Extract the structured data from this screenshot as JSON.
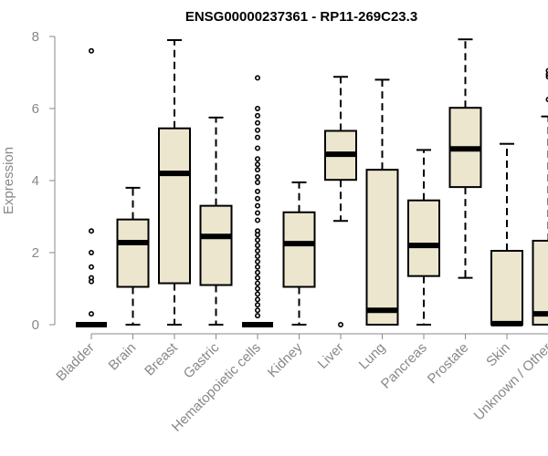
{
  "chart_data": {
    "type": "boxplot",
    "title": "ENSG00000237361 - RP11-269C23.3",
    "xlabel": "",
    "ylabel": "Expression",
    "ylim": [
      0,
      8
    ],
    "yticks": [
      0,
      2,
      4,
      6,
      8
    ],
    "box_fill": "#ede6cf",
    "categories": [
      "Bladder",
      "Brain",
      "Breast",
      "Gastric",
      "Hematopoietic cells",
      "Kidney",
      "Liver",
      "Lung",
      "Pancreas",
      "Prostate",
      "Skin",
      "Unknown / Other"
    ],
    "boxes": [
      {
        "name": "Bladder",
        "q1": 0,
        "median": 0,
        "q3": 0,
        "whisker_low": 0,
        "whisker_high": 0,
        "outliers": [
          7.6,
          2.6,
          2.0,
          1.6,
          1.3,
          1.2,
          0.3
        ]
      },
      {
        "name": "Brain",
        "q1": 1.05,
        "median": 2.28,
        "q3": 2.92,
        "whisker_low": 0,
        "whisker_high": 3.8,
        "outliers": []
      },
      {
        "name": "Breast",
        "q1": 1.15,
        "median": 4.2,
        "q3": 5.45,
        "whisker_low": 0,
        "whisker_high": 7.9,
        "outliers": []
      },
      {
        "name": "Gastric",
        "q1": 1.1,
        "median": 2.45,
        "q3": 3.3,
        "whisker_low": 0,
        "whisker_high": 5.75,
        "outliers": []
      },
      {
        "name": "Hematopoietic cells",
        "q1": 0,
        "median": 0,
        "q3": 0,
        "whisker_low": 0,
        "whisker_high": 0,
        "outliers": [
          6.85,
          6.0,
          5.8,
          5.6,
          5.4,
          5.2,
          4.9,
          4.6,
          4.45,
          4.3,
          4.1,
          3.95,
          3.7,
          3.5,
          3.3,
          3.1,
          2.9,
          2.6,
          2.5,
          2.35,
          2.2,
          2.05,
          1.9,
          1.75,
          1.6,
          1.45,
          1.3,
          1.15,
          1.0,
          0.85,
          0.7,
          0.55,
          0.4,
          0.25
        ]
      },
      {
        "name": "Kidney",
        "q1": 1.05,
        "median": 2.25,
        "q3": 3.12,
        "whisker_low": 0,
        "whisker_high": 3.95,
        "outliers": []
      },
      {
        "name": "Liver",
        "q1": 4.02,
        "median": 4.73,
        "q3": 5.38,
        "whisker_low": 2.88,
        "whisker_high": 6.88,
        "outliers": [
          0
        ]
      },
      {
        "name": "Lung",
        "q1": 0,
        "median": 0.4,
        "q3": 4.3,
        "whisker_low": 0,
        "whisker_high": 6.8,
        "outliers": []
      },
      {
        "name": "Pancreas",
        "q1": 1.35,
        "median": 2.2,
        "q3": 3.45,
        "whisker_low": 0,
        "whisker_high": 4.85,
        "outliers": []
      },
      {
        "name": "Prostate",
        "q1": 3.82,
        "median": 4.88,
        "q3": 6.02,
        "whisker_low": 1.3,
        "whisker_high": 7.92,
        "outliers": []
      },
      {
        "name": "Skin",
        "q1": 0,
        "median": 0.03,
        "q3": 2.05,
        "whisker_low": 0,
        "whisker_high": 5.02,
        "outliers": []
      },
      {
        "name": "Unknown / Other",
        "q1": 0,
        "median": 0.3,
        "q3": 2.33,
        "whisker_low": 0,
        "whisker_high": 5.78,
        "outliers": [
          7.05,
          6.95,
          6.88,
          6.25
        ]
      }
    ]
  }
}
